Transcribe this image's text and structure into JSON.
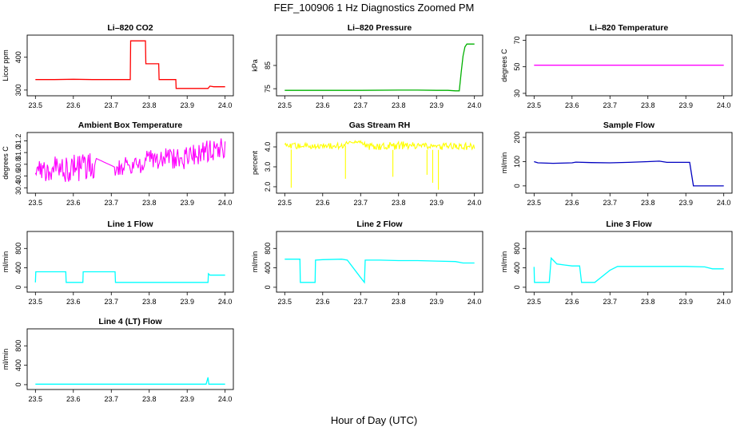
{
  "figure": {
    "title": "FEF_100906  1 Hz Diagnostics Zoomed PM",
    "xlabel": "Hour of Day (UTC)"
  },
  "chart_data": [
    {
      "type": "line",
      "title": "Li–820 CO2",
      "ylabel": "Licor ppm",
      "xlim": [
        23.5,
        24.0
      ],
      "ylim": [
        290,
        460
      ],
      "xticks": [
        "23.5",
        "23.6",
        "23.7",
        "23.8",
        "23.9",
        "24.0"
      ],
      "yticks": [
        {
          "value": 300,
          "label": "300"
        },
        {
          "value": 400,
          "label": "400"
        }
      ],
      "color": "#ff0000",
      "style": "step",
      "series": [
        {
          "x": [
            23.5,
            23.55,
            23.6,
            23.65,
            23.7,
            23.75,
            23.751,
            23.79,
            23.791,
            23.825,
            23.826,
            23.87,
            23.871,
            23.94,
            23.955,
            23.96,
            23.97,
            24.0
          ],
          "y": [
            332,
            332,
            333,
            332,
            332,
            332,
            450,
            450,
            380,
            380,
            332,
            332,
            305,
            305,
            305,
            312,
            310,
            310
          ]
        }
      ]
    },
    {
      "type": "line",
      "title": "Li–820 Pressure",
      "ylabel": "kPa",
      "xlim": [
        23.5,
        24.0
      ],
      "ylim": [
        73,
        97
      ],
      "xticks": [
        "23.5",
        "23.6",
        "23.7",
        "23.8",
        "23.9",
        "24.0"
      ],
      "yticks": [
        {
          "value": 75,
          "label": "75"
        },
        {
          "value": 85,
          "label": "85"
        }
      ],
      "color": "#00b000",
      "style": "line",
      "series": [
        {
          "x": [
            23.5,
            23.6,
            23.7,
            23.8,
            23.85,
            23.9,
            23.93,
            23.95,
            23.96,
            23.965,
            23.97,
            23.975,
            23.98,
            24.0
          ],
          "y": [
            74.3,
            74.3,
            74.3,
            74.4,
            74.4,
            74.3,
            74.3,
            74.1,
            74.1,
            82,
            89,
            93,
            94.2,
            94.2
          ]
        }
      ]
    },
    {
      "type": "line",
      "title": "Li–820 Temperature",
      "ylabel": "degrees C",
      "xlim": [
        23.5,
        24.0
      ],
      "ylim": [
        30,
        72
      ],
      "xticks": [
        "23.5",
        "23.6",
        "23.7",
        "23.8",
        "23.9",
        "24.0"
      ],
      "yticks": [
        {
          "value": 30,
          "label": "30"
        },
        {
          "value": 50,
          "label": "50"
        },
        {
          "value": 70,
          "label": "70"
        }
      ],
      "color": "#ff00ff",
      "style": "line",
      "series": [
        {
          "x": [
            23.5,
            24.0
          ],
          "y": [
            51.2,
            51.2
          ]
        }
      ]
    },
    {
      "type": "line",
      "title": "Ambient Box Temperature",
      "ylabel": "degrees C",
      "xlim": [
        23.5,
        24.0
      ],
      "ylim": [
        30.35,
        31.3
      ],
      "xticks": [
        "23.5",
        "23.6",
        "23.7",
        "23.8",
        "23.9",
        "24.0"
      ],
      "yticks": [
        {
          "value": 30.4,
          "label": "30.4"
        },
        {
          "value": 30.6,
          "label": "30.6"
        },
        {
          "value": 30.8,
          "label": "30.8"
        },
        {
          "value": 31.0,
          "label": "31.0"
        },
        {
          "value": 31.2,
          "label": "31.2"
        }
      ],
      "color": "#ff00ff",
      "style": "band",
      "series": [
        {
          "x": [
            23.5,
            23.52,
            23.55,
            23.58,
            23.61,
            23.64,
            23.66,
            23.71,
            23.74,
            23.77,
            23.8,
            23.83,
            23.86,
            23.89,
            23.92,
            23.95,
            23.98,
            24.0
          ],
          "low": [
            30.5,
            30.5,
            30.5,
            30.5,
            30.5,
            30.5,
            30.6,
            30.6,
            30.6,
            30.6,
            30.7,
            30.7,
            30.7,
            30.7,
            30.8,
            30.8,
            30.9,
            30.9
          ],
          "high": [
            30.9,
            30.9,
            30.95,
            30.95,
            31.0,
            31.0,
            31.0,
            30.9,
            31.0,
            31.0,
            31.05,
            31.1,
            31.1,
            31.1,
            31.15,
            31.2,
            31.25,
            31.25
          ]
        }
      ]
    },
    {
      "type": "line",
      "title": "Gas Stream RH",
      "ylabel": "percent",
      "xlim": [
        23.5,
        24.0
      ],
      "ylim": [
        1.8,
        4.6
      ],
      "xticks": [
        "23.5",
        "23.6",
        "23.7",
        "23.8",
        "23.9",
        "24.0"
      ],
      "yticks": [
        {
          "value": 2.0,
          "label": "2.0"
        },
        {
          "value": 3.0,
          "label": "3.0"
        },
        {
          "value": 4.0,
          "label": "4.0"
        }
      ],
      "color": "#ffff00",
      "style": "band",
      "series": [
        {
          "x": [
            23.5,
            23.55,
            23.6,
            23.65,
            23.67,
            23.7,
            23.72,
            23.75,
            23.8,
            23.85,
            23.9,
            23.95,
            24.0
          ],
          "low": [
            3.85,
            3.9,
            3.9,
            3.9,
            4.2,
            4.2,
            3.85,
            3.85,
            3.85,
            3.85,
            3.85,
            3.85,
            3.85
          ],
          "high": [
            4.2,
            4.2,
            4.2,
            4.2,
            4.3,
            4.3,
            4.2,
            4.2,
            4.3,
            4.2,
            4.2,
            4.2,
            4.2
          ],
          "spikes": [
            [
              23.517,
              1.95
            ],
            [
              23.66,
              2.4
            ],
            [
              23.785,
              2.5
            ],
            [
              23.875,
              2.6
            ],
            [
              23.89,
              2.2
            ],
            [
              23.905,
              1.85
            ]
          ]
        }
      ]
    },
    {
      "type": "line",
      "title": "Sample Flow",
      "ylabel": "ml/min",
      "xlim": [
        23.5,
        24.0
      ],
      "ylim": [
        -20,
        210
      ],
      "xticks": [
        "23.5",
        "23.6",
        "23.7",
        "23.8",
        "23.9",
        "24.0"
      ],
      "yticks": [
        {
          "value": 0,
          "label": "0"
        },
        {
          "value": 100,
          "label": "100"
        },
        {
          "value": 200,
          "label": "200"
        }
      ],
      "color": "#0000c0",
      "style": "line",
      "series": [
        {
          "x": [
            23.5,
            23.51,
            23.55,
            23.6,
            23.61,
            23.65,
            23.7,
            23.75,
            23.8,
            23.83,
            23.85,
            23.9,
            23.91,
            23.92,
            23.95,
            24.0
          ],
          "y": [
            100,
            95,
            93,
            95,
            98,
            96,
            95,
            97,
            100,
            102,
            97,
            97,
            97,
            0,
            0,
            0
          ]
        }
      ]
    },
    {
      "type": "line",
      "title": "Line 1 Flow",
      "ylabel": "ml/min",
      "xlim": [
        23.5,
        24.0
      ],
      "ylim": [
        -50,
        1100
      ],
      "xticks": [
        "23.5",
        "23.6",
        "23.7",
        "23.8",
        "23.9",
        "24.0"
      ],
      "yticks": [
        {
          "value": 0,
          "label": "0"
        },
        {
          "value": 400,
          "label": "400"
        },
        {
          "value": 800,
          "label": "800"
        }
      ],
      "color": "#00ffff",
      "style": "step",
      "series": [
        {
          "x": [
            23.5,
            23.501,
            23.58,
            23.581,
            23.625,
            23.626,
            23.71,
            23.711,
            23.955,
            23.956,
            23.96,
            24.0
          ],
          "y": [
            100,
            320,
            320,
            100,
            100,
            320,
            320,
            100,
            100,
            280,
            250,
            250
          ]
        }
      ]
    },
    {
      "type": "line",
      "title": "Line 2 Flow",
      "ylabel": "ml/min",
      "xlim": [
        23.5,
        24.0
      ],
      "ylim": [
        -50,
        1100
      ],
      "xticks": [
        "23.5",
        "23.6",
        "23.7",
        "23.8",
        "23.9",
        "24.0"
      ],
      "yticks": [
        {
          "value": 0,
          "label": "0"
        },
        {
          "value": 400,
          "label": "400"
        },
        {
          "value": 800,
          "label": "800"
        }
      ],
      "color": "#00ffff",
      "style": "line",
      "series": [
        {
          "x": [
            23.5,
            23.54,
            23.541,
            23.58,
            23.581,
            23.6,
            23.65,
            23.665,
            23.7,
            23.71,
            23.712,
            23.75,
            23.8,
            23.85,
            23.9,
            23.95,
            23.97,
            24.0
          ],
          "y": [
            580,
            580,
            100,
            100,
            560,
            570,
            580,
            560,
            200,
            100,
            560,
            560,
            550,
            550,
            540,
            530,
            500,
            500
          ]
        }
      ]
    },
    {
      "type": "line",
      "title": "Line 3 Flow",
      "ylabel": "ml/min",
      "xlim": [
        23.5,
        24.0
      ],
      "ylim": [
        -50,
        1100
      ],
      "xticks": [
        "23.5",
        "23.6",
        "23.7",
        "23.8",
        "23.9",
        "24.0"
      ],
      "yticks": [
        {
          "value": 0,
          "label": "0"
        },
        {
          "value": 400,
          "label": "400"
        },
        {
          "value": 800,
          "label": "800"
        }
      ],
      "color": "#00ffff",
      "style": "line",
      "series": [
        {
          "x": [
            23.5,
            23.501,
            23.505,
            23.54,
            23.545,
            23.56,
            23.58,
            23.6,
            23.62,
            23.625,
            23.66,
            23.7,
            23.72,
            23.8,
            23.9,
            23.95,
            23.97,
            24.0
          ],
          "y": [
            420,
            100,
            100,
            100,
            600,
            480,
            460,
            440,
            440,
            100,
            100,
            350,
            430,
            430,
            430,
            420,
            380,
            380
          ]
        }
      ]
    },
    {
      "type": "line",
      "title": "Line 4 (LT) Flow",
      "ylabel": "ml/min",
      "xlim": [
        23.5,
        24.0
      ],
      "ylim": [
        -50,
        1100
      ],
      "xticks": [
        "23.5",
        "23.6",
        "23.7",
        "23.8",
        "23.9",
        "24.0"
      ],
      "yticks": [
        {
          "value": 0,
          "label": "0"
        },
        {
          "value": 400,
          "label": "400"
        },
        {
          "value": 800,
          "label": "800"
        }
      ],
      "color": "#00ffff",
      "style": "line",
      "series": [
        {
          "x": [
            23.5,
            23.7,
            23.95,
            23.955,
            23.957,
            23.96,
            24.0
          ],
          "y": [
            10,
            10,
            10,
            150,
            10,
            10,
            10
          ]
        }
      ]
    }
  ]
}
